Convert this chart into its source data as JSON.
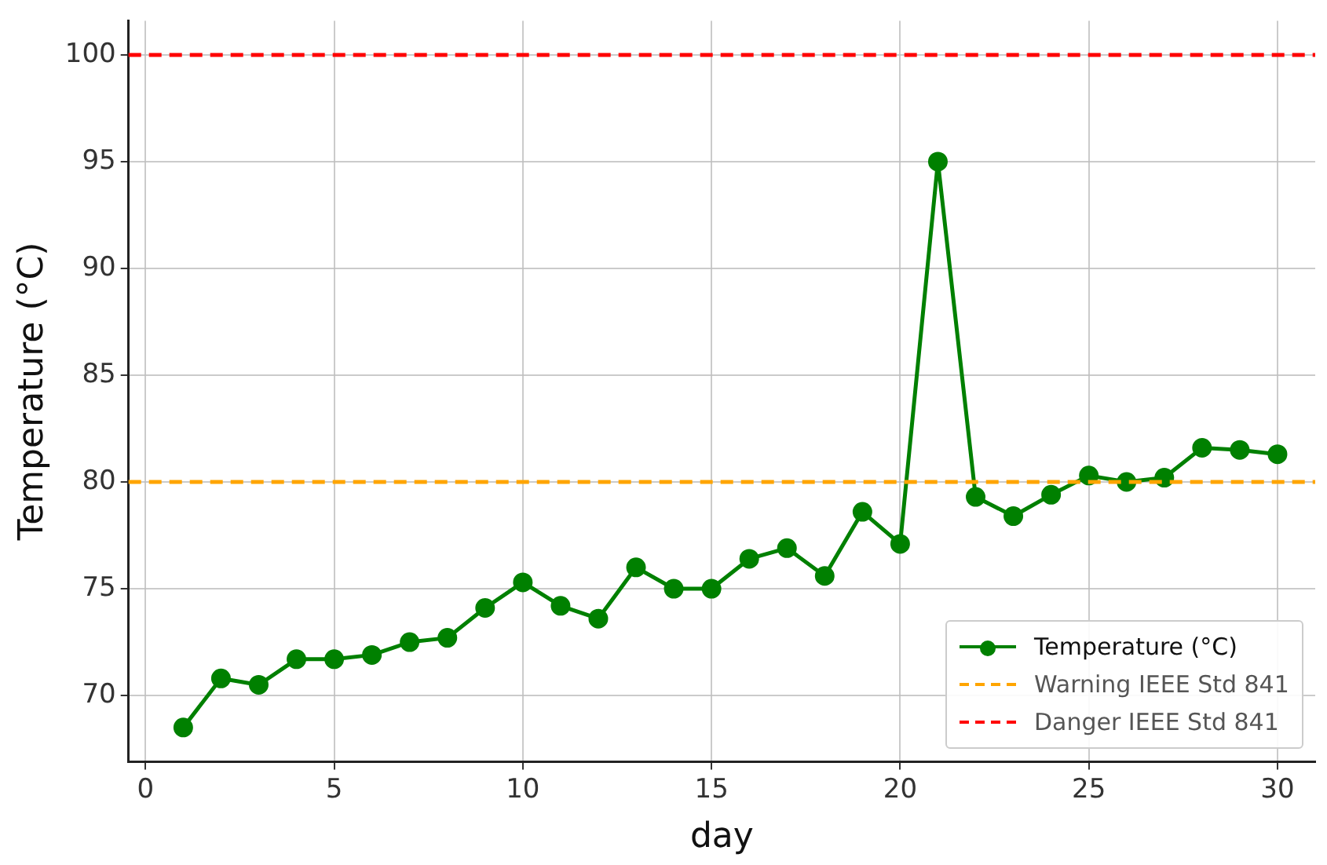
{
  "chart_data": {
    "type": "line",
    "xlabel": "day",
    "ylabel": "Temperature (°C)",
    "x": [
      1,
      2,
      3,
      4,
      5,
      6,
      7,
      8,
      9,
      10,
      11,
      12,
      13,
      14,
      15,
      16,
      17,
      18,
      19,
      20,
      21,
      22,
      23,
      24,
      25,
      26,
      27,
      28,
      29,
      30
    ],
    "series": [
      {
        "name": "Temperature (°C)",
        "color": "#008000",
        "values": [
          68.5,
          70.8,
          70.5,
          71.7,
          71.7,
          71.9,
          72.5,
          72.7,
          74.1,
          75.3,
          74.2,
          73.6,
          76.0,
          75.0,
          75.0,
          76.4,
          76.9,
          75.6,
          78.6,
          77.1,
          95.0,
          79.3,
          78.4,
          79.4,
          80.3,
          80.0,
          80.2,
          81.6,
          81.5,
          81.3
        ]
      }
    ],
    "ref_lines": [
      {
        "axis": "y",
        "value": 80,
        "label": "Warning IEEE Std 841",
        "color": "#ffa500",
        "line_style": "dashed"
      },
      {
        "axis": "y",
        "value": 100,
        "label": "Danger IEEE Std 841",
        "color": "#ff0000",
        "line_style": "dashed"
      }
    ],
    "xlim": [
      -0.45,
      31.0
    ],
    "ylim": [
      66.9,
      101.6
    ],
    "xticks": [
      0,
      5,
      10,
      15,
      20,
      25,
      30
    ],
    "yticks": [
      70,
      75,
      80,
      85,
      90,
      95,
      100
    ],
    "grid": true,
    "legend": "bottom right",
    "marker": "circle",
    "line_style": "solid"
  }
}
